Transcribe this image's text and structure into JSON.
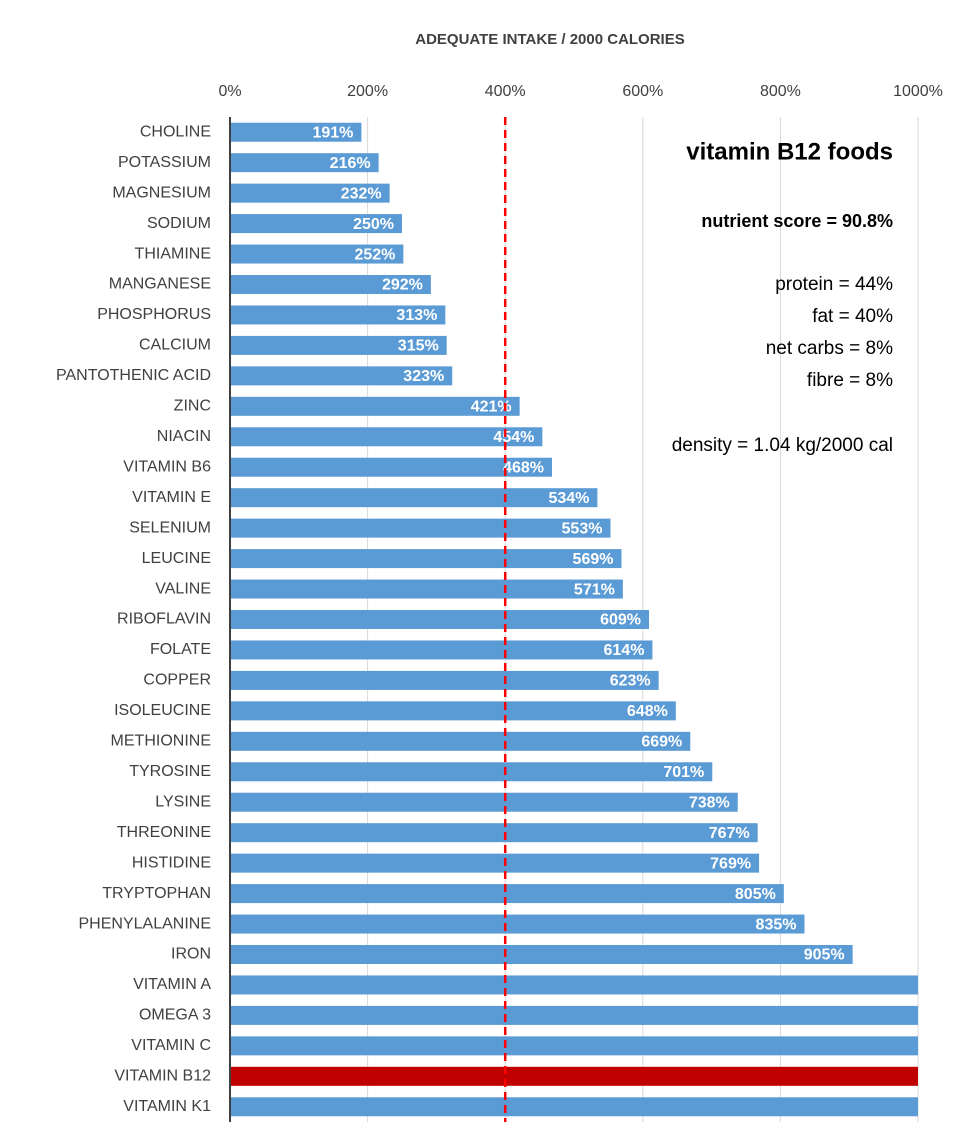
{
  "chart_data": {
    "type": "bar",
    "orientation": "horizontal",
    "title": "ADEQUATE INTAKE / 2000 CALORIES",
    "categories": [
      "CHOLINE",
      "POTASSIUM",
      "MAGNESIUM",
      "SODIUM",
      "THIAMINE",
      "MANGANESE",
      "PHOSPHORUS",
      "CALCIUM",
      "PANTOTHENIC ACID",
      "ZINC",
      "NIACIN",
      "VITAMIN B6",
      "VITAMIN E",
      "SELENIUM",
      "LEUCINE",
      "VALINE",
      "RIBOFLAVIN",
      "FOLATE",
      "COPPER",
      "ISOLEUCINE",
      "METHIONINE",
      "TYROSINE",
      "LYSINE",
      "THREONINE",
      "HISTIDINE",
      "TRYPTOPHAN",
      "PHENYLALANINE",
      "IRON",
      "VITAMIN A",
      "OMEGA 3",
      "VITAMIN C",
      "VITAMIN B12",
      "VITAMIN K1"
    ],
    "values": [
      191,
      216,
      232,
      250,
      252,
      292,
      313,
      315,
      323,
      421,
      454,
      468,
      534,
      553,
      569,
      571,
      609,
      614,
      623,
      648,
      669,
      701,
      738,
      767,
      769,
      805,
      835,
      905,
      1000,
      1000,
      1000,
      1000,
      1000
    ],
    "value_labels": [
      "191%",
      "216%",
      "232%",
      "250%",
      "252%",
      "292%",
      "313%",
      "315%",
      "323%",
      "421%",
      "454%",
      "468%",
      "534%",
      "553%",
      "569%",
      "571%",
      "609%",
      "614%",
      "623%",
      "648%",
      "669%",
      "701%",
      "738%",
      "767%",
      "769%",
      "805%",
      "835%",
      "905%",
      null,
      null,
      null,
      null,
      null
    ],
    "colors": [
      "#5b9bd5",
      "#5b9bd5",
      "#5b9bd5",
      "#5b9bd5",
      "#5b9bd5",
      "#5b9bd5",
      "#5b9bd5",
      "#5b9bd5",
      "#5b9bd5",
      "#5b9bd5",
      "#5b9bd5",
      "#5b9bd5",
      "#5b9bd5",
      "#5b9bd5",
      "#5b9bd5",
      "#5b9bd5",
      "#5b9bd5",
      "#5b9bd5",
      "#5b9bd5",
      "#5b9bd5",
      "#5b9bd5",
      "#5b9bd5",
      "#5b9bd5",
      "#5b9bd5",
      "#5b9bd5",
      "#5b9bd5",
      "#5b9bd5",
      "#5b9bd5",
      "#5b9bd5",
      "#5b9bd5",
      "#5b9bd5",
      "#c00000",
      "#5b9bd5"
    ],
    "xlim": [
      0,
      1000
    ],
    "xticks": [
      {
        "value": 0,
        "label": "0%"
      },
      {
        "value": 200,
        "label": "200%"
      },
      {
        "value": 400,
        "label": "400%"
      },
      {
        "value": 600,
        "label": "600%"
      },
      {
        "value": 800,
        "label": "800%"
      },
      {
        "value": 1000,
        "label": "1000%"
      }
    ],
    "grid": true,
    "reference_line": {
      "value": 400,
      "color": "#ff0000"
    },
    "annotations": [
      "vitamin B12 foods",
      "nutrient score = 90.8%",
      "protein = 44%",
      "fat = 40%",
      "net carbs = 8%",
      "fibre = 8%",
      "density = 1.04 kg/2000 cal"
    ]
  }
}
